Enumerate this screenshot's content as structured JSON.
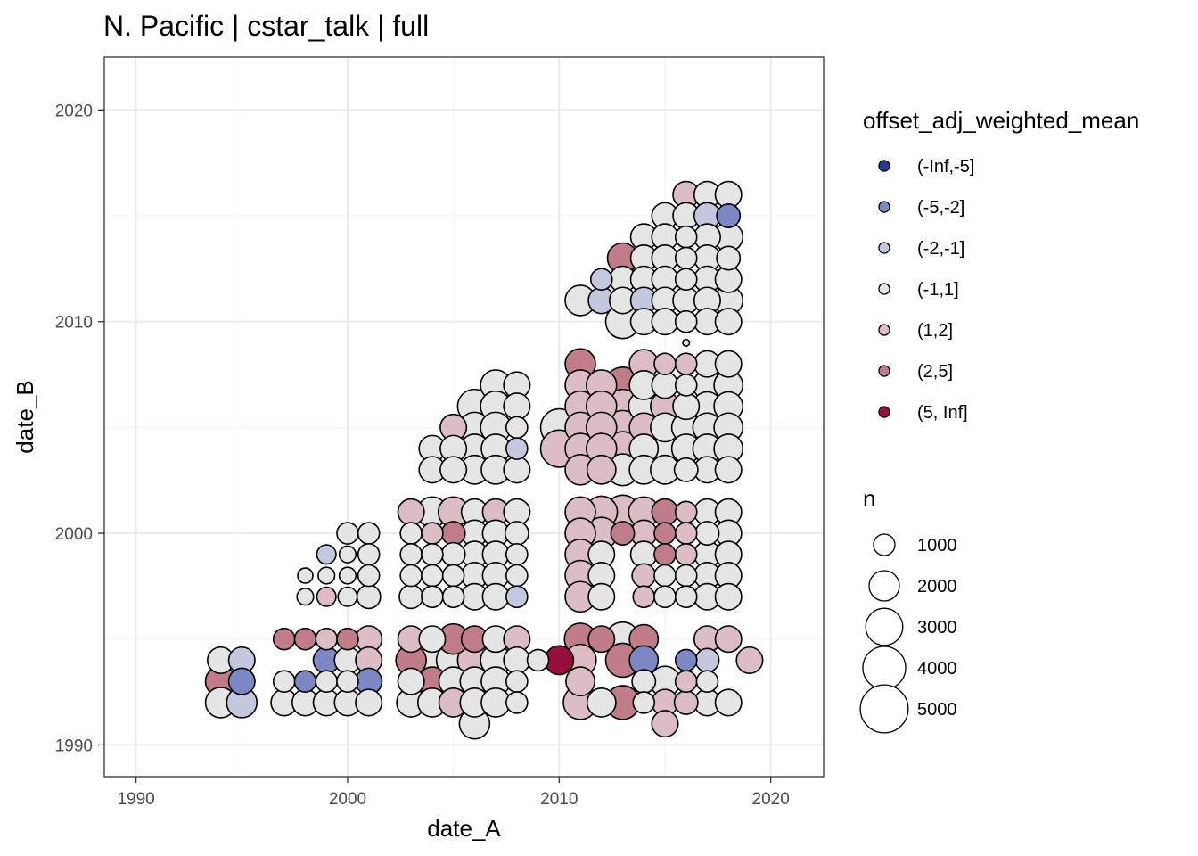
{
  "chart_data": {
    "type": "scatter",
    "title": "N. Pacific | cstar_talk | full",
    "xlabel": "date_A",
    "ylabel": "date_B",
    "xlim": [
      1988.5,
      2022.5
    ],
    "ylim": [
      1988.5,
      2022.5
    ],
    "x_ticks": [
      1990,
      2000,
      2010,
      2020
    ],
    "y_ticks": [
      1990,
      2000,
      2010,
      2020
    ],
    "x_tick_labels": [
      "1990",
      "2000",
      "2010",
      "2020"
    ],
    "y_tick_labels": [
      "1990",
      "2000",
      "2010",
      "2020"
    ],
    "grid": true,
    "legend_position": "right",
    "color_legend": {
      "title": "offset_adj_weighted_mean",
      "labels": [
        "(-Inf,-5]",
        "(-5,-2]",
        "(-2,-1]",
        "(-1,1]",
        "(1,2]",
        "(2,5]",
        "(5, Inf]"
      ],
      "colors": [
        "#1F3F8F",
        "#7C87C4",
        "#C4C8DE",
        "#E5E5E5",
        "#DDBDC5",
        "#C07C88",
        "#97103D"
      ]
    },
    "size_legend": {
      "title": "n",
      "labels": [
        "1000",
        "2000",
        "3000",
        "4000",
        "5000"
      ],
      "values": [
        1000,
        2000,
        3000,
        4000,
        5000
      ]
    },
    "point_fields": [
      "date_A",
      "date_B",
      "offset_class",
      "n"
    ],
    "points": [
      [
        1994,
        1994,
        3,
        1500
      ],
      [
        1994,
        1993,
        5,
        2000
      ],
      [
        1994,
        1992,
        3,
        2000
      ],
      [
        1995,
        1994,
        2,
        1500
      ],
      [
        1995,
        1993,
        1,
        1500
      ],
      [
        1995,
        1992,
        2,
        2000
      ],
      [
        1997,
        1995,
        5,
        1000
      ],
      [
        1997,
        1993,
        3,
        1000
      ],
      [
        1997,
        1992,
        3,
        1500
      ],
      [
        1998,
        1998,
        3,
        500
      ],
      [
        1998,
        1997,
        3,
        600
      ],
      [
        1998,
        1995,
        5,
        1000
      ],
      [
        1998,
        1993,
        1,
        1000
      ],
      [
        1998,
        1992,
        3,
        1500
      ],
      [
        1999,
        1999,
        2,
        800
      ],
      [
        1999,
        1998,
        3,
        600
      ],
      [
        1999,
        1997,
        4,
        800
      ],
      [
        1999,
        1995,
        4,
        1000
      ],
      [
        1999,
        1994,
        1,
        1500
      ],
      [
        1999,
        1993,
        3,
        1000
      ],
      [
        1999,
        1992,
        3,
        1500
      ],
      [
        2000,
        2000,
        3,
        1000
      ],
      [
        2000,
        1999,
        3,
        600
      ],
      [
        2000,
        1998,
        3,
        600
      ],
      [
        2000,
        1997,
        3,
        800
      ],
      [
        2000,
        1995,
        5,
        1000
      ],
      [
        2000,
        1994,
        3,
        1500
      ],
      [
        2000,
        1993,
        3,
        1000
      ],
      [
        2000,
        1992,
        3,
        1500
      ],
      [
        2001,
        2000,
        3,
        1000
      ],
      [
        2001,
        1999,
        3,
        1000
      ],
      [
        2001,
        1998,
        3,
        1000
      ],
      [
        2001,
        1997,
        3,
        1200
      ],
      [
        2001,
        1995,
        4,
        1500
      ],
      [
        2001,
        1994,
        4,
        1500
      ],
      [
        2001,
        1993,
        1,
        1500
      ],
      [
        2001,
        1992,
        3,
        1500
      ],
      [
        2003,
        2001,
        4,
        1500
      ],
      [
        2003,
        2000,
        3,
        1000
      ],
      [
        2003,
        1999,
        3,
        1000
      ],
      [
        2003,
        1998,
        3,
        1000
      ],
      [
        2003,
        1997,
        3,
        1200
      ],
      [
        2003,
        1995,
        4,
        1500
      ],
      [
        2003,
        1994,
        5,
        2000
      ],
      [
        2003,
        1993,
        3,
        1500
      ],
      [
        2003,
        1992,
        3,
        1800
      ],
      [
        2004,
        2004,
        3,
        1500
      ],
      [
        2004,
        2003,
        3,
        1500
      ],
      [
        2004,
        2001,
        3,
        2000
      ],
      [
        2004,
        2000,
        4,
        1000
      ],
      [
        2004,
        1999,
        3,
        1000
      ],
      [
        2004,
        1998,
        3,
        1000
      ],
      [
        2004,
        1997,
        3,
        1000
      ],
      [
        2004,
        1995,
        3,
        1500
      ],
      [
        2004,
        1994,
        3,
        3000
      ],
      [
        2004,
        1993,
        5,
        1800
      ],
      [
        2004,
        1992,
        3,
        1800
      ],
      [
        2005,
        2005,
        4,
        1500
      ],
      [
        2005,
        2004,
        3,
        1500
      ],
      [
        2005,
        2003,
        3,
        1500
      ],
      [
        2005,
        2001,
        4,
        2000
      ],
      [
        2005,
        2000,
        5,
        1200
      ],
      [
        2005,
        1999,
        3,
        1200
      ],
      [
        2005,
        1998,
        3,
        1000
      ],
      [
        2005,
        1997,
        3,
        1000
      ],
      [
        2005,
        1995,
        5,
        2000
      ],
      [
        2005,
        1994,
        3,
        2500
      ],
      [
        2005,
        1993,
        3,
        1800
      ],
      [
        2005,
        1992,
        4,
        1800
      ],
      [
        2006,
        2006,
        3,
        2500
      ],
      [
        2006,
        2005,
        3,
        2000
      ],
      [
        2006,
        2004,
        3,
        1800
      ],
      [
        2006,
        2003,
        3,
        1800
      ],
      [
        2006,
        2001,
        3,
        1500
      ],
      [
        2006,
        2000,
        3,
        1500
      ],
      [
        2006,
        1999,
        3,
        1500
      ],
      [
        2006,
        1998,
        3,
        1500
      ],
      [
        2006,
        1997,
        3,
        1500
      ],
      [
        2006,
        1995,
        5,
        1500
      ],
      [
        2006,
        1994,
        4,
        2500
      ],
      [
        2006,
        1993,
        3,
        1800
      ],
      [
        2006,
        1992,
        3,
        1800
      ],
      [
        2006,
        1991,
        3,
        2000
      ],
      [
        2007,
        2007,
        3,
        2000
      ],
      [
        2007,
        2006,
        3,
        2000
      ],
      [
        2007,
        2005,
        3,
        2000
      ],
      [
        2007,
        2004,
        3,
        1800
      ],
      [
        2007,
        2003,
        3,
        1800
      ],
      [
        2007,
        2001,
        4,
        1500
      ],
      [
        2007,
        2000,
        3,
        1500
      ],
      [
        2007,
        1999,
        3,
        1500
      ],
      [
        2007,
        1998,
        3,
        1500
      ],
      [
        2007,
        1997,
        3,
        1500
      ],
      [
        2007,
        1995,
        3,
        1500
      ],
      [
        2007,
        1994,
        3,
        2000
      ],
      [
        2007,
        1993,
        3,
        1800
      ],
      [
        2007,
        1992,
        3,
        1800
      ],
      [
        2008,
        2007,
        3,
        1500
      ],
      [
        2008,
        2006,
        3,
        1500
      ],
      [
        2008,
        2005,
        3,
        1000
      ],
      [
        2008,
        2004,
        2,
        1000
      ],
      [
        2008,
        2003,
        3,
        1500
      ],
      [
        2008,
        2001,
        3,
        1500
      ],
      [
        2008,
        2000,
        3,
        1200
      ],
      [
        2008,
        1999,
        3,
        1000
      ],
      [
        2008,
        1998,
        3,
        1000
      ],
      [
        2008,
        1997,
        2,
        1000
      ],
      [
        2008,
        1995,
        4,
        1500
      ],
      [
        2008,
        1994,
        3,
        1500
      ],
      [
        2008,
        1993,
        3,
        1000
      ],
      [
        2008,
        1992,
        3,
        1000
      ],
      [
        2009,
        1994,
        3,
        1000
      ],
      [
        2010,
        2005,
        3,
        3000
      ],
      [
        2010,
        2004,
        4,
        3000
      ],
      [
        2010,
        1994,
        6,
        1800
      ],
      [
        2011,
        2011,
        3,
        2000
      ],
      [
        2011,
        2008,
        5,
        2000
      ],
      [
        2011,
        2007,
        4,
        2000
      ],
      [
        2011,
        2006,
        4,
        2000
      ],
      [
        2011,
        2005,
        4,
        2000
      ],
      [
        2011,
        2004,
        4,
        2000
      ],
      [
        2011,
        2003,
        4,
        2000
      ],
      [
        2011,
        2001,
        4,
        2000
      ],
      [
        2011,
        2000,
        4,
        2000
      ],
      [
        2011,
        1999,
        4,
        2000
      ],
      [
        2011,
        1998,
        4,
        2000
      ],
      [
        2011,
        1997,
        4,
        2000
      ],
      [
        2011,
        1995,
        5,
        2200
      ],
      [
        2011,
        1994,
        4,
        2200
      ],
      [
        2011,
        1993,
        4,
        1800
      ],
      [
        2011,
        1992,
        4,
        2500
      ],
      [
        2012,
        2012,
        2,
        1000
      ],
      [
        2012,
        2011,
        2,
        1500
      ],
      [
        2012,
        2007,
        4,
        2000
      ],
      [
        2012,
        2006,
        4,
        2000
      ],
      [
        2012,
        2005,
        4,
        2000
      ],
      [
        2012,
        2004,
        4,
        2000
      ],
      [
        2012,
        2003,
        4,
        1800
      ],
      [
        2012,
        2001,
        4,
        2200
      ],
      [
        2012,
        2000,
        4,
        2200
      ],
      [
        2012,
        1999,
        3,
        1500
      ],
      [
        2012,
        1998,
        3,
        1500
      ],
      [
        2012,
        1997,
        3,
        1500
      ],
      [
        2012,
        1995,
        5,
        1500
      ],
      [
        2012,
        1992,
        3,
        1800
      ],
      [
        2013,
        2013,
        5,
        2000
      ],
      [
        2013,
        2012,
        3,
        1500
      ],
      [
        2013,
        2011,
        3,
        1500
      ],
      [
        2013,
        2010,
        3,
        2500
      ],
      [
        2013,
        2007,
        5,
        2800
      ],
      [
        2013,
        2006,
        4,
        2500
      ],
      [
        2013,
        2005,
        4,
        2500
      ],
      [
        2013,
        2004,
        4,
        2500
      ],
      [
        2013,
        2003,
        3,
        2200
      ],
      [
        2013,
        2001,
        4,
        2500
      ],
      [
        2013,
        2000,
        5,
        1200
      ],
      [
        2013,
        1995,
        3,
        2500
      ],
      [
        2013,
        1994,
        5,
        2500
      ],
      [
        2013,
        1992,
        5,
        2500
      ],
      [
        2014,
        2014,
        3,
        1500
      ],
      [
        2014,
        2013,
        3,
        1500
      ],
      [
        2014,
        2012,
        3,
        1500
      ],
      [
        2014,
        2011,
        2,
        1500
      ],
      [
        2014,
        2010,
        3,
        1500
      ],
      [
        2014,
        2008,
        4,
        1800
      ],
      [
        2014,
        2007,
        3,
        1800
      ],
      [
        2014,
        2006,
        3,
        2000
      ],
      [
        2014,
        2005,
        4,
        1800
      ],
      [
        2014,
        2004,
        3,
        1800
      ],
      [
        2014,
        2003,
        3,
        1800
      ],
      [
        2014,
        2001,
        4,
        2000
      ],
      [
        2014,
        2000,
        4,
        1500
      ],
      [
        2014,
        1999,
        3,
        1500
      ],
      [
        2014,
        1998,
        4,
        1200
      ],
      [
        2014,
        1997,
        4,
        1000
      ],
      [
        2014,
        1995,
        5,
        1800
      ],
      [
        2014,
        1994,
        1,
        1800
      ],
      [
        2014,
        1993,
        3,
        1200
      ],
      [
        2014,
        1992,
        3,
        1000
      ],
      [
        2015,
        2015,
        3,
        1500
      ],
      [
        2015,
        2014,
        3,
        1500
      ],
      [
        2015,
        2013,
        3,
        1500
      ],
      [
        2015,
        2012,
        3,
        1500
      ],
      [
        2015,
        2011,
        3,
        1500
      ],
      [
        2015,
        2010,
        3,
        1500
      ],
      [
        2015,
        2008,
        4,
        1000
      ],
      [
        2015,
        2007,
        3,
        1500
      ],
      [
        2015,
        2006,
        4,
        1800
      ],
      [
        2015,
        2005,
        3,
        1800
      ],
      [
        2015,
        2004,
        3,
        2500
      ],
      [
        2015,
        2003,
        3,
        1800
      ],
      [
        2015,
        2001,
        5,
        1500
      ],
      [
        2015,
        2000,
        5,
        1000
      ],
      [
        2015,
        1999,
        5,
        1000
      ],
      [
        2015,
        1998,
        3,
        1000
      ],
      [
        2015,
        1997,
        3,
        1000
      ],
      [
        2015,
        1993,
        3,
        2000
      ],
      [
        2015,
        1992,
        4,
        1500
      ],
      [
        2015,
        1991,
        4,
        1500
      ],
      [
        2016,
        2016,
        4,
        1500
      ],
      [
        2016,
        2015,
        3,
        1500
      ],
      [
        2016,
        2014,
        3,
        1000
      ],
      [
        2016,
        2013,
        3,
        1000
      ],
      [
        2016,
        2012,
        3,
        1000
      ],
      [
        2016,
        2011,
        3,
        1500
      ],
      [
        2016,
        2010,
        3,
        1000
      ],
      [
        2016,
        2009,
        3,
        100
      ],
      [
        2016,
        2008,
        4,
        1000
      ],
      [
        2016,
        2007,
        3,
        1000
      ],
      [
        2016,
        2006,
        3,
        1500
      ],
      [
        2016,
        2005,
        3,
        1800
      ],
      [
        2016,
        2004,
        3,
        1800
      ],
      [
        2016,
        2003,
        3,
        1200
      ],
      [
        2016,
        2001,
        4,
        1000
      ],
      [
        2016,
        2000,
        4,
        1000
      ],
      [
        2016,
        1999,
        4,
        1000
      ],
      [
        2016,
        1998,
        3,
        1000
      ],
      [
        2016,
        1997,
        3,
        1000
      ],
      [
        2016,
        1994,
        1,
        1000
      ],
      [
        2016,
        1993,
        4,
        1000
      ],
      [
        2016,
        1992,
        4,
        1200
      ],
      [
        2017,
        2016,
        3,
        1500
      ],
      [
        2017,
        2015,
        2,
        1500
      ],
      [
        2017,
        2014,
        3,
        1500
      ],
      [
        2017,
        2013,
        3,
        1500
      ],
      [
        2017,
        2012,
        3,
        1500
      ],
      [
        2017,
        2011,
        3,
        1500
      ],
      [
        2017,
        2010,
        3,
        1500
      ],
      [
        2017,
        2008,
        3,
        1500
      ],
      [
        2017,
        2007,
        3,
        1800
      ],
      [
        2017,
        2006,
        3,
        1800
      ],
      [
        2017,
        2005,
        3,
        1800
      ],
      [
        2017,
        2004,
        3,
        1800
      ],
      [
        2017,
        2003,
        3,
        1500
      ],
      [
        2017,
        2001,
        3,
        1500
      ],
      [
        2017,
        2000,
        3,
        1200
      ],
      [
        2017,
        1999,
        3,
        1500
      ],
      [
        2017,
        1998,
        3,
        1500
      ],
      [
        2017,
        1997,
        3,
        1500
      ],
      [
        2017,
        1995,
        4,
        1500
      ],
      [
        2017,
        1994,
        2,
        1200
      ],
      [
        2017,
        1993,
        3,
        1000
      ],
      [
        2017,
        1992,
        3,
        1500
      ],
      [
        2018,
        2016,
        3,
        1500
      ],
      [
        2018,
        2015,
        1,
        1200
      ],
      [
        2018,
        2014,
        3,
        1800
      ],
      [
        2018,
        2013,
        3,
        1200
      ],
      [
        2018,
        2012,
        3,
        1500
      ],
      [
        2018,
        2011,
        3,
        1800
      ],
      [
        2018,
        2010,
        3,
        1500
      ],
      [
        2018,
        2008,
        3,
        1500
      ],
      [
        2018,
        2007,
        3,
        1800
      ],
      [
        2018,
        2006,
        3,
        1800
      ],
      [
        2018,
        2005,
        3,
        1800
      ],
      [
        2018,
        2004,
        3,
        1800
      ],
      [
        2018,
        2003,
        3,
        1500
      ],
      [
        2018,
        2001,
        3,
        1500
      ],
      [
        2018,
        2000,
        3,
        1500
      ],
      [
        2018,
        1999,
        3,
        1500
      ],
      [
        2018,
        1998,
        3,
        1500
      ],
      [
        2018,
        1997,
        3,
        1500
      ],
      [
        2018,
        1995,
        4,
        1500
      ],
      [
        2018,
        1992,
        3,
        1500
      ],
      [
        2019,
        1994,
        4,
        1500
      ]
    ]
  }
}
